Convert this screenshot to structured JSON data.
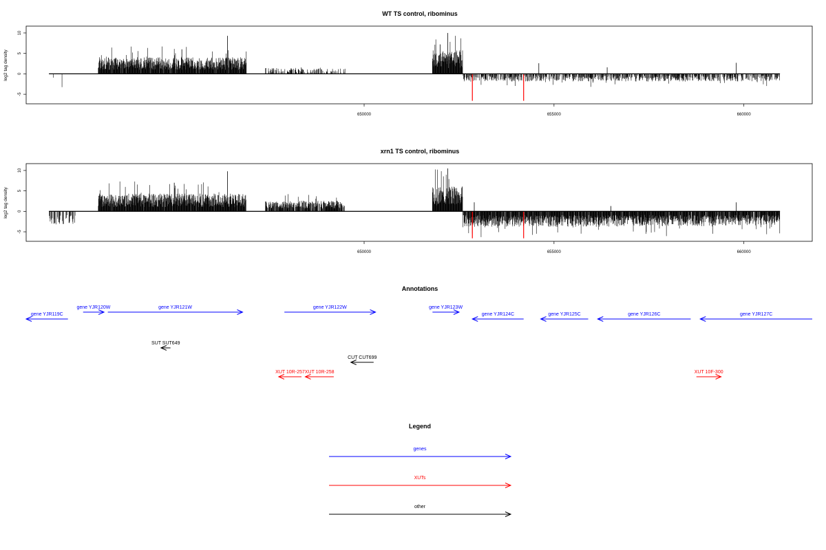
{
  "colors": {
    "gene": "#0000ff",
    "xut": "#ff0000",
    "other": "#000000",
    "highlight": "#ff0000",
    "bar": "#000000"
  },
  "chart_data": [
    {
      "type": "bar",
      "title": "WT TS control, ribominus",
      "ylabel": "log2 tag density",
      "xlim": [
        641100,
        661800
      ],
      "ylim": [
        -7,
        11
      ],
      "x_ticks": [
        650000,
        655000,
        660000
      ],
      "x_tick_labels": [
        "650000",
        "655000",
        "660000"
      ],
      "y_ticks": [
        -5,
        0,
        5,
        10
      ],
      "y_tick_labels": [
        "-5",
        "0",
        "5",
        "10"
      ],
      "baseline_range": [
        641700,
        660950
      ],
      "segments": [
        {
          "start": 641700,
          "end": 642400,
          "strand": "-",
          "level": 2.5,
          "density": 0.04,
          "seed": 1
        },
        {
          "start": 643000,
          "end": 646900,
          "strand": "+",
          "level": 2.8,
          "density": 0.95,
          "seed": 2
        },
        {
          "start": 647400,
          "end": 648400,
          "strand": "+",
          "level": 1.0,
          "density": 0.35,
          "seed": 3
        },
        {
          "start": 648400,
          "end": 649500,
          "strand": "+",
          "level": 0.9,
          "density": 0.3,
          "seed": 4
        },
        {
          "start": 651800,
          "end": 652600,
          "strand": "+",
          "level": 4.0,
          "density": 1.0,
          "seed": 5
        },
        {
          "start": 652600,
          "end": 656800,
          "strand": "-",
          "level": 1.3,
          "density": 0.55,
          "seed": 6
        },
        {
          "start": 656800,
          "end": 659000,
          "strand": "-",
          "level": 1.3,
          "density": 0.6,
          "seed": 7
        },
        {
          "start": 659000,
          "end": 660950,
          "strand": "-",
          "level": 1.3,
          "density": 0.55,
          "seed": 8
        }
      ],
      "peaks": [
        {
          "x": 646400,
          "value": 9.3
        },
        {
          "x": 652200,
          "value": 10.0
        },
        {
          "x": 654600,
          "value": 2.6
        },
        {
          "x": 656400,
          "value": 1.6
        },
        {
          "x": 659800,
          "value": 2.7
        },
        {
          "x": 652000,
          "value": 7.2
        },
        {
          "x": 645200,
          "value": 6.0
        }
      ],
      "highlight_bars": [
        {
          "x": 652850,
          "value": -6.6
        },
        {
          "x": 654200,
          "value": -6.6
        }
      ]
    },
    {
      "type": "bar",
      "title": "xrn1 TS control, ribominus",
      "ylabel": "log2 tag density",
      "xlim": [
        641100,
        661800
      ],
      "ylim": [
        -7,
        11
      ],
      "x_ticks": [
        650000,
        655000,
        660000
      ],
      "x_tick_labels": [
        "650000",
        "655000",
        "660000"
      ],
      "y_ticks": [
        -5,
        0,
        5,
        10
      ],
      "y_tick_labels": [
        "-5",
        "0",
        "5",
        "10"
      ],
      "baseline_range": [
        641700,
        660950
      ],
      "segments": [
        {
          "start": 641700,
          "end": 642400,
          "strand": "-",
          "level": 2.4,
          "density": 0.4,
          "seed": 11
        },
        {
          "start": 643000,
          "end": 646900,
          "strand": "+",
          "level": 3.0,
          "density": 0.98,
          "seed": 12
        },
        {
          "start": 647400,
          "end": 649500,
          "strand": "+",
          "level": 1.8,
          "density": 0.85,
          "seed": 13
        },
        {
          "start": 651800,
          "end": 652600,
          "strand": "+",
          "level": 4.2,
          "density": 1.0,
          "seed": 14
        },
        {
          "start": 652600,
          "end": 656800,
          "strand": "-",
          "level": 2.6,
          "density": 0.95,
          "seed": 15
        },
        {
          "start": 656800,
          "end": 659000,
          "strand": "-",
          "level": 2.5,
          "density": 0.95,
          "seed": 16
        },
        {
          "start": 659000,
          "end": 660950,
          "strand": "-",
          "level": 2.4,
          "density": 0.9,
          "seed": 17
        }
      ],
      "peaks": [
        {
          "x": 646400,
          "value": 9.8
        },
        {
          "x": 652200,
          "value": 10.5
        },
        {
          "x": 652900,
          "value": 2.2
        },
        {
          "x": 656500,
          "value": 1.3
        },
        {
          "x": 659800,
          "value": 2.2
        },
        {
          "x": 645000,
          "value": 7.0
        }
      ],
      "highlight_bars": [
        {
          "x": 652850,
          "value": -6.6
        },
        {
          "x": 654200,
          "value": -6.6
        }
      ]
    }
  ],
  "annotations": {
    "title": "Annotations",
    "xlim": [
      641100,
      661800
    ],
    "features": [
      {
        "label": "gene YJR119C",
        "kind": "gene",
        "start": 641100,
        "end": 642200,
        "strand": "-",
        "row": 1
      },
      {
        "label": "gene YJR120W",
        "kind": "gene",
        "start": 642600,
        "end": 643150,
        "strand": "+",
        "row": 0
      },
      {
        "label": "gene YJR121W",
        "kind": "gene",
        "start": 643250,
        "end": 646800,
        "strand": "+",
        "row": 0
      },
      {
        "label": "gene YJR122W",
        "kind": "gene",
        "start": 647900,
        "end": 650300,
        "strand": "+",
        "row": 0
      },
      {
        "label": "gene YJR123W",
        "kind": "gene",
        "start": 651800,
        "end": 652500,
        "strand": "+",
        "row": 0
      },
      {
        "label": "gene YJR124C",
        "kind": "gene",
        "start": 652850,
        "end": 654200,
        "strand": "-",
        "row": 1
      },
      {
        "label": "gene YJR125C",
        "kind": "gene",
        "start": 654650,
        "end": 655900,
        "strand": "-",
        "row": 1
      },
      {
        "label": "gene YJR126C",
        "kind": "gene",
        "start": 656150,
        "end": 658600,
        "strand": "-",
        "row": 1
      },
      {
        "label": "gene YJR127C",
        "kind": "gene",
        "start": 658850,
        "end": 661800,
        "strand": "-",
        "row": 1
      },
      {
        "label": "SUT SUT649",
        "kind": "other",
        "start": 644650,
        "end": 644900,
        "strand": "-",
        "row": 2
      },
      {
        "label": "CUT CUT699",
        "kind": "other",
        "start": 649650,
        "end": 650250,
        "strand": "-",
        "row": 3
      },
      {
        "label": "XUT 10R-257",
        "kind": "xut",
        "start": 647750,
        "end": 648350,
        "strand": "-",
        "row": 4
      },
      {
        "label": "XUT 10R-258",
        "kind": "xut",
        "start": 648450,
        "end": 649200,
        "strand": "-",
        "row": 4
      },
      {
        "label": "XUT 10F-300",
        "kind": "xut",
        "start": 658750,
        "end": 659400,
        "strand": "+",
        "row": 4
      }
    ]
  },
  "legend": {
    "title": "Legend",
    "items": [
      {
        "label": "genes",
        "kind": "gene"
      },
      {
        "label": "XUTs",
        "kind": "xut"
      },
      {
        "label": "other",
        "kind": "other"
      }
    ]
  }
}
